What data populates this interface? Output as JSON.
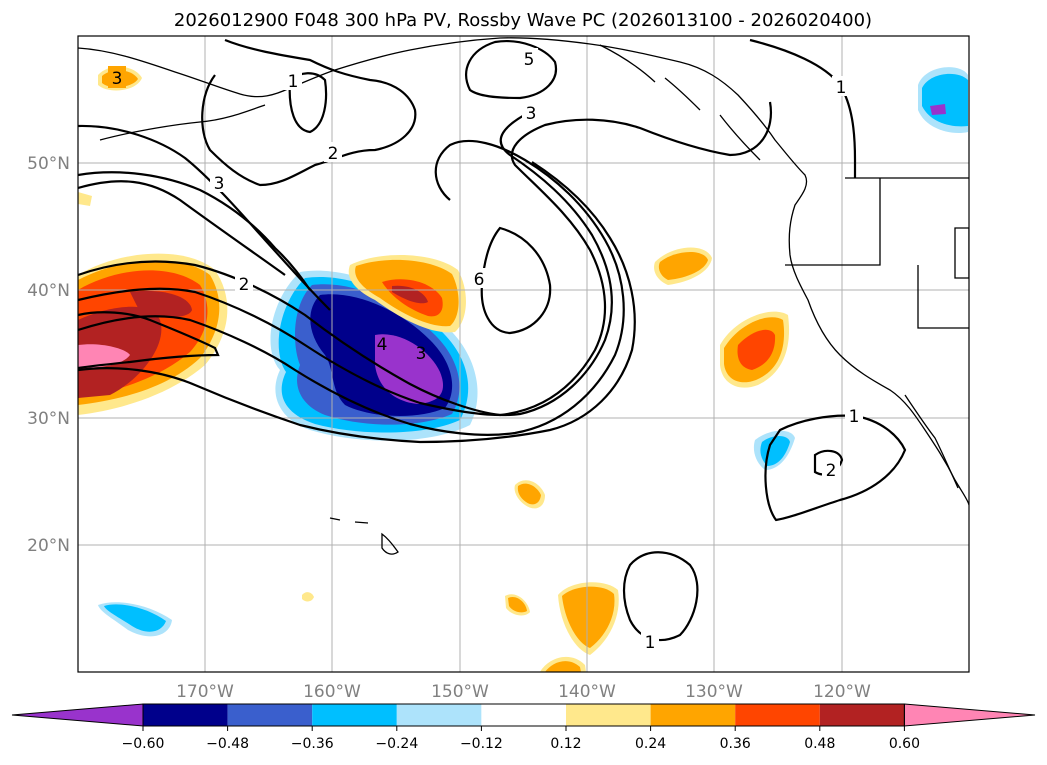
{
  "title": "2026012900 F048 300 hPa PV, Rossby Wave PC (2026013100 - 2026020400)",
  "map": {
    "lat_labels": [
      "50°N",
      "40°N",
      "30°N",
      "20°N"
    ],
    "lon_labels": [
      "170°W",
      "160°W",
      "150°W",
      "140°W",
      "130°W",
      "120°W"
    ],
    "extent": {
      "lon_min": -180,
      "lon_max": -110,
      "lat_min": 10,
      "lat_max": 60
    }
  },
  "contour_labels": [
    "3",
    "1",
    "2",
    "3",
    "5",
    "3",
    "1",
    "2",
    "4",
    "3",
    "6",
    "1",
    "2",
    "1"
  ],
  "colorbar": {
    "ticks": [
      "−0.60",
      "−0.48",
      "−0.36",
      "−0.24",
      "−0.12",
      "0.12",
      "0.24",
      "0.36",
      "0.48",
      "0.60"
    ],
    "colors": [
      "#9933cc",
      "#00008b",
      "#3a5fcd",
      "#00bfff",
      "#ade3fb",
      "#ffffff",
      "#ffe88c",
      "#ffa500",
      "#ff4500",
      "#b22222",
      "#ff85b4"
    ]
  }
}
